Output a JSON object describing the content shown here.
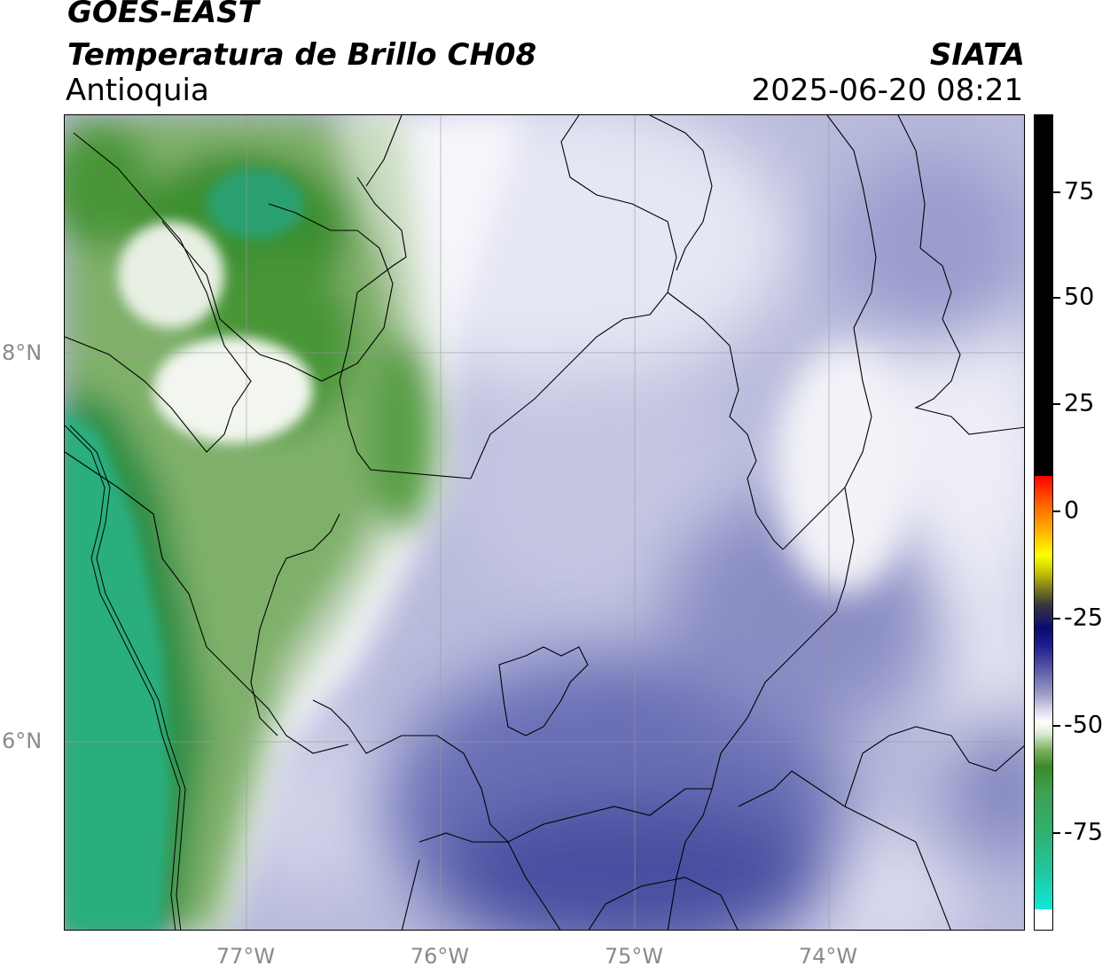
{
  "header": {
    "satellite": "GOES-EAST",
    "product": "Temperatura de Brillo CH08",
    "region": "Antioquia",
    "agency": "SIATA",
    "datetime": "2025-06-20 08:21"
  },
  "axes": {
    "lat_labels": [
      "8°N",
      "6°N"
    ],
    "lon_labels": [
      "77°W",
      "76°W",
      "75°W",
      "74°W"
    ]
  },
  "colorbar": {
    "labels": [
      "75",
      "50",
      "25",
      "0",
      "-25",
      "-50",
      "-75"
    ],
    "colors": {
      "warm_top": "#000000",
      "red": "#ff0000",
      "yellow": "#ffff00",
      "dark_blue": "#0a0a70",
      "lavender": "#9a9ac8",
      "white": "#ffffff",
      "green": "#3a8a2a",
      "teal": "#20c8a0",
      "cyan": "#10e8d8"
    }
  },
  "map": {
    "palette": {
      "coastal_green": "#4f9a3a",
      "ocean_teal": "#2aae7e",
      "light_green": "#c9dcc0",
      "interior_lavender": "#a9abd2",
      "deep_blue": "#4a4fa0",
      "cloud_white": "#f4f4fa"
    }
  }
}
